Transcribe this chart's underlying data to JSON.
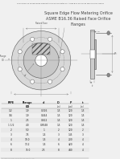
{
  "bg_color": "#f0f0f0",
  "drawing_color": "#555555",
  "dim_color": "#777777",
  "title_top": "Dimensions of Square Edge Flow Metering Orifice Plates For ASME B16.36 Raised Face Orifice Flanges",
  "title1": "Square Edge Flow Metering Orifice",
  "title2": "ASME B16.36 Raised Face Orifice",
  "title3": "Flanges",
  "table_headers": [
    "PIPE",
    "Flange\nOD",
    "d",
    "ID",
    "P",
    "t"
  ],
  "col_headers_row2": [
    "",
    "(in)",
    "",
    "(in)",
    "(psi)",
    "(in)"
  ],
  "table_data": [
    [
      "1/2",
      "1.9",
      "0.326",
      "1.5",
      "120",
      "1.5"
    ],
    [
      "3/4",
      "1.9",
      "0.444",
      "1.5",
      "120",
      "1.5"
    ],
    [
      "1",
      "2.5",
      "0.612",
      "1.5",
      "120",
      "1.5"
    ],
    [
      "1 1/2",
      "4.0",
      "0.9048",
      "1.5",
      "120",
      "1.5"
    ],
    [
      "2",
      "5.0",
      "1",
      "2",
      "120",
      "2"
    ],
    [
      "3",
      "7.5",
      "1.5",
      "3",
      "145",
      "3"
    ],
    [
      "4",
      "10.0",
      "1.5",
      "4",
      "200",
      "4"
    ],
    [
      "6",
      "13.2",
      "1.5",
      "6",
      "420",
      "4"
    ],
    [
      "8",
      "15.0",
      "2.5",
      "8",
      "440",
      "4"
    ]
  ],
  "n_bolts": 8,
  "outer_r": 1.0,
  "raised_r": 0.6,
  "bore_r": 0.2,
  "bolt_circle_r": 0.78,
  "bolt_hole_r": 0.07
}
